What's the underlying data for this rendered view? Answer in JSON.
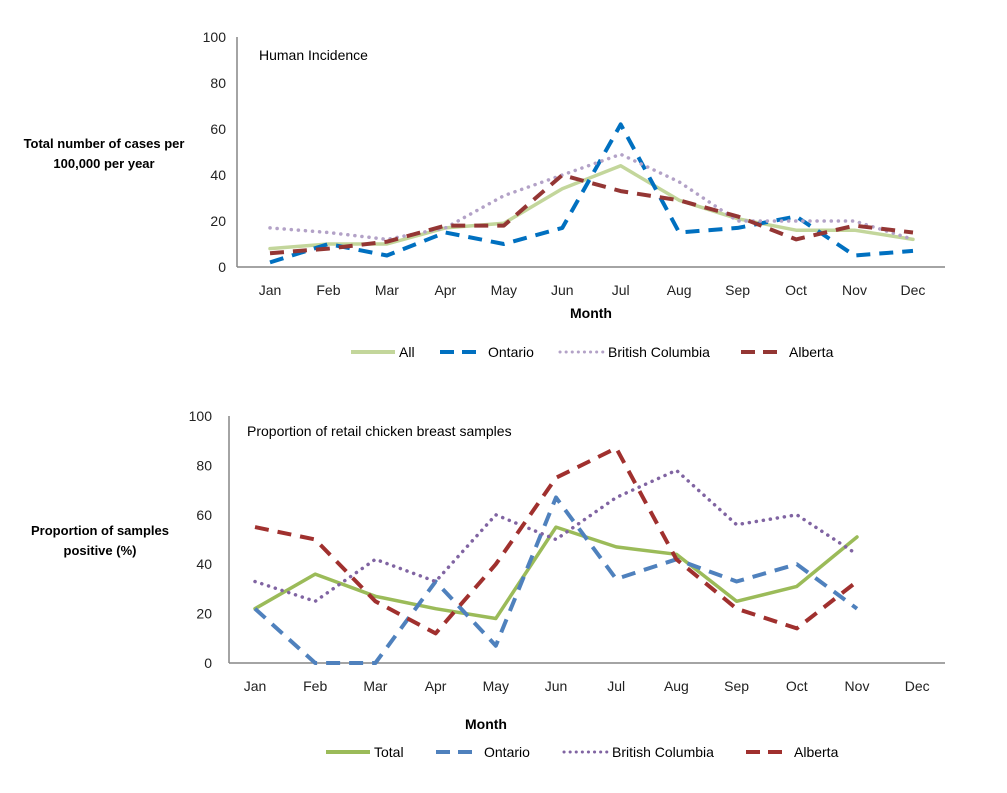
{
  "chart_data": [
    {
      "type": "line",
      "title": "Human Incidence",
      "xlabel": "Month",
      "ylabel": "Total number of cases per 100,000 per year",
      "ylim": [
        0,
        100
      ],
      "yticks": [
        0,
        20,
        40,
        60,
        80,
        100
      ],
      "grid": false,
      "legend_position": "bottom",
      "categories": [
        "Jan",
        "Feb",
        "Mar",
        "Apr",
        "May",
        "Jun",
        "Jul",
        "Aug",
        "Sep",
        "Oct",
        "Nov",
        "Dec"
      ],
      "series": [
        {
          "name": "All",
          "color": "#c3d69b",
          "style": "solid",
          "values": [
            8,
            10,
            10,
            17,
            19,
            34,
            44,
            29,
            21,
            16,
            16,
            12
          ]
        },
        {
          "name": "Ontario",
          "color": "#0070c0",
          "style": "dashed",
          "values": [
            2,
            10,
            5,
            15,
            10,
            17,
            62,
            15,
            17,
            22,
            5,
            7
          ]
        },
        {
          "name": "British Columbia",
          "color": "#b3a2c7",
          "style": "dotted",
          "values": [
            17,
            15,
            12,
            17,
            31,
            40,
            49,
            37,
            20,
            20,
            20,
            12
          ]
        },
        {
          "name": "Alberta",
          "color": "#943634",
          "style": "dashed",
          "values": [
            6,
            8,
            11,
            18,
            18,
            40,
            33,
            29,
            22,
            12,
            18,
            15
          ]
        }
      ]
    },
    {
      "type": "line",
      "title": "Proportion of retail chicken breast samples",
      "xlabel": "Month",
      "ylabel": "Proportion of samples positive (%)",
      "ylim": [
        0,
        100
      ],
      "yticks": [
        0,
        20,
        40,
        60,
        80,
        100
      ],
      "grid": false,
      "legend_position": "bottom",
      "categories": [
        "Jan",
        "Feb",
        "Mar",
        "Apr",
        "May",
        "Jun",
        "Jul",
        "Aug",
        "Sep",
        "Oct",
        "Nov",
        "Dec"
      ],
      "series": [
        {
          "name": "Total",
          "color": "#9bbb59",
          "style": "solid",
          "values": [
            22,
            36,
            27,
            22,
            18,
            55,
            47,
            44,
            25,
            31,
            51,
            null
          ]
        },
        {
          "name": "Ontario",
          "color": "#4f81bd",
          "style": "dashed",
          "values": [
            22,
            0,
            0,
            33,
            7,
            67,
            34,
            42,
            33,
            40,
            22,
            null
          ]
        },
        {
          "name": "British Columbia",
          "color": "#8064a2",
          "style": "dotted",
          "values": [
            33,
            25,
            42,
            33,
            60,
            50,
            67,
            78,
            56,
            60,
            44,
            null
          ]
        },
        {
          "name": "Alberta",
          "color": "#a0302e",
          "style": "dashed",
          "values": [
            55,
            50,
            25,
            12,
            40,
            75,
            87,
            42,
            22,
            14,
            33,
            null
          ]
        }
      ]
    }
  ],
  "charts": [
    {
      "title": "Human Incidence",
      "ylabel_lines": [
        "Total number of cases per",
        "100,000 per year"
      ],
      "xlabel": "Month"
    },
    {
      "title": "Proportion of retail chicken breast samples",
      "ylabel_lines": [
        "Proportion  of samples",
        "positive (%)"
      ],
      "xlabel": "Month"
    }
  ]
}
